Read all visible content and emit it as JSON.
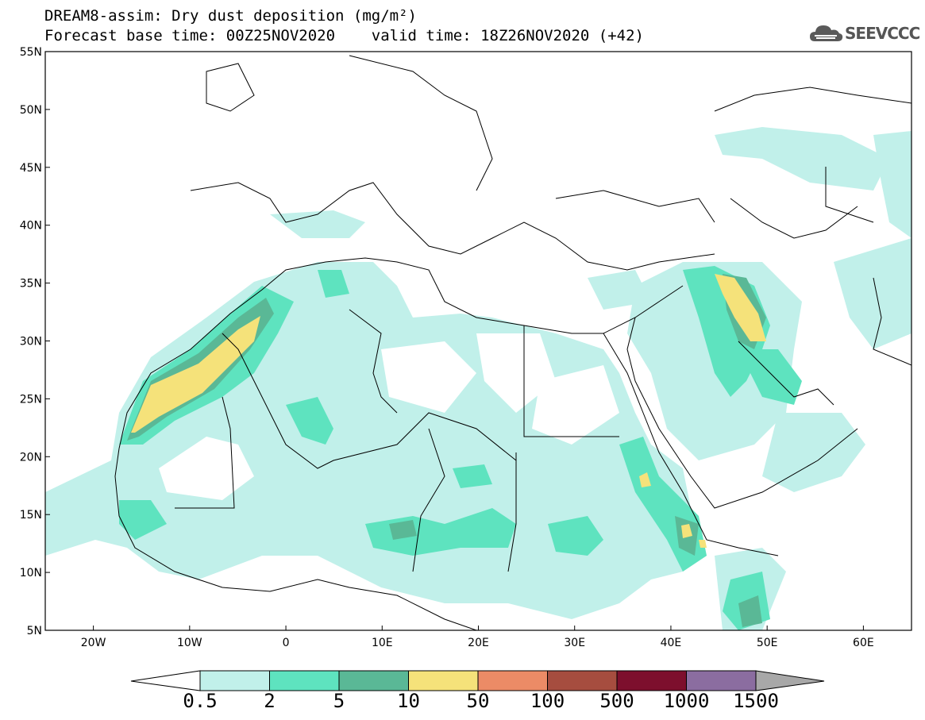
{
  "header": {
    "title_line1": "DREAM8-assim: Dry dust deposition (mg/m²)",
    "title_line2": "Forecast base time: 00Z25NOV2020    valid time: 18Z26NOV2020 (+42)",
    "logo_text": "SEEVCCC"
  },
  "map": {
    "lat_range": [
      5,
      55
    ],
    "lon_range": [
      -25,
      65
    ],
    "lat_labels": [
      "55N",
      "50N",
      "45N",
      "40N",
      "35N",
      "30N",
      "25N",
      "20N",
      "15N",
      "10N",
      "5N"
    ],
    "lat_values": [
      55,
      50,
      45,
      40,
      35,
      30,
      25,
      20,
      15,
      10,
      5
    ],
    "lon_labels": [
      "20W",
      "10W",
      "0",
      "10E",
      "20E",
      "30E",
      "40E",
      "50E",
      "60E"
    ],
    "lon_values": [
      -20,
      -10,
      0,
      10,
      20,
      30,
      40,
      50,
      60
    ]
  },
  "colorbar": {
    "labels": [
      "0.5",
      "2",
      "5",
      "10",
      "50",
      "100",
      "500",
      "1000",
      "1500"
    ],
    "colors": [
      "#c1f0ea",
      "#5ee3bf",
      "#5ab896",
      "#f5e27a",
      "#ec8b66",
      "#a64d3f",
      "#7d0f2d",
      "#8b6da0",
      "#a8a8a8"
    ]
  }
}
